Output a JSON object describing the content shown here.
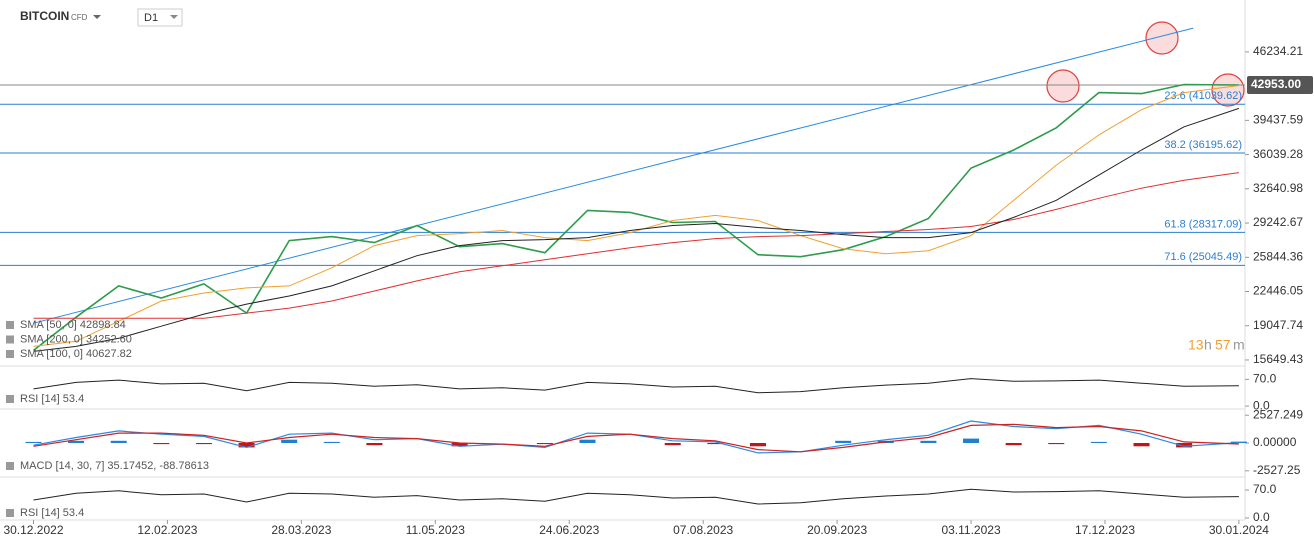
{
  "header": {
    "symbol": "BITCOIN",
    "instrument_type": "CFD",
    "timeframe": "D1",
    "countdown": [
      "13",
      "h",
      "57",
      "m"
    ]
  },
  "chart_data": [
    {
      "type": "line",
      "x": [
        "30.12.2022",
        "13.01.2023",
        "27.01.2023",
        "10.02.2023",
        "24.02.2023",
        "10.03.2023",
        "24.03.2023",
        "07.04.2023",
        "21.04.2023",
        "05.05.2023",
        "19.05.2023",
        "02.06.2023",
        "16.06.2023",
        "30.06.2023",
        "14.07.2023",
        "28.07.2023",
        "11.08.2023",
        "25.08.2023",
        "08.09.2023",
        "22.09.2023",
        "06.10.2023",
        "20.10.2023",
        "03.11.2023",
        "17.11.2023",
        "01.12.2023",
        "15.12.2023",
        "29.12.2023",
        "12.01.2024",
        "30.01.2024"
      ],
      "series": [
        {
          "color": "#2e9c4a",
          "values": [
            16600,
            19900,
            23000,
            21800,
            23200,
            20300,
            27500,
            27900,
            27300,
            29000,
            26900,
            27200,
            26300,
            30500,
            30300,
            29300,
            29400,
            26100,
            25900,
            26600,
            27900,
            29700,
            34700,
            36500,
            38700,
            42200,
            42100,
            43000,
            42953
          ]
        },
        {
          "name": "SMA [50, 0] 42898.84",
          "color": "#f0a030",
          "values": [
            17000,
            17500,
            19500,
            21500,
            22300,
            22800,
            23000,
            24800,
            27000,
            28000,
            28200,
            28500,
            27800,
            27500,
            28300,
            29500,
            30000,
            29500,
            28000,
            26700,
            26200,
            26500,
            28000,
            31500,
            35000,
            38000,
            40500,
            42200,
            42898.84
          ]
        },
        {
          "name": "SMA [200, 0] 34252.60",
          "color": "#e03030",
          "values": [
            19800,
            19800,
            19800,
            19800,
            19800,
            20300,
            20800,
            21500,
            22500,
            23500,
            24400,
            25000,
            25600,
            26200,
            26800,
            27300,
            27700,
            27900,
            28000,
            28200,
            28400,
            28600,
            28900,
            29600,
            30600,
            31700,
            32700,
            33500,
            34252.6
          ]
        },
        {
          "name": "SMA [100, 0] 40627.82",
          "color": "#222222",
          "values": [
            16500,
            17000,
            17800,
            19000,
            20200,
            21200,
            22000,
            23000,
            24500,
            26000,
            27000,
            27500,
            27600,
            27800,
            28500,
            29000,
            29200,
            28800,
            28500,
            28100,
            27800,
            27800,
            28300,
            29800,
            31500,
            34000,
            36500,
            38800,
            40627.82
          ]
        }
      ],
      "xlim": [
        "19.12.2022",
        "01.02.2024"
      ],
      "xticks": [
        "30.12.2022",
        "12.02.2023",
        "28.03.2023",
        "11.05.2023",
        "24.06.2023",
        "07.08.2023",
        "20.09.2023",
        "03.11.2023",
        "17.12.2023",
        "30.01.2024"
      ],
      "ylim": [
        15150,
        49900
      ],
      "yticks": [
        46234.21,
        39437.59,
        36039.28,
        32640.98,
        29242.67,
        25844.36,
        22446.05,
        19047.74,
        15649.43
      ],
      "last_price": {
        "value": 42953,
        "label": "42953.00"
      },
      "fib_levels": [
        {
          "value": 41039.62,
          "label": "23.6 (41039.62)"
        },
        {
          "value": 36195.62,
          "label": "38.2 (36195.62)"
        },
        {
          "value": 28317.09,
          "label": "61.8 (28317.09)"
        },
        {
          "value": 25045.49,
          "label": "71.6 (25045.49)"
        }
      ],
      "fib_color": "#2a7fd4",
      "trendline": {
        "x": [
          "30.12.2022",
          "15.01.2024"
        ],
        "values": [
          19300,
          48600
        ],
        "color": "#2a8ae0"
      }
    },
    {
      "type": "line",
      "title": "RSI [14] 53.4",
      "series": [
        {
          "color": "#222222",
          "values": [
            45,
            62,
            68,
            58,
            60,
            40,
            62,
            60,
            52,
            56,
            45,
            48,
            42,
            62,
            58,
            50,
            52,
            35,
            38,
            48,
            55,
            60,
            72,
            65,
            66,
            68,
            60,
            52,
            53.4
          ]
        }
      ],
      "ylim": [
        -5,
        105
      ],
      "yticks": [
        {
          "value": 70,
          "label": "70.0"
        },
        {
          "value": 0,
          "label": "0.0"
        }
      ]
    },
    {
      "type": "macd",
      "title": "MACD [14, 30, 7] 35.17452, -88.78613",
      "series": [
        {
          "type": "bar",
          "color": "#1f7fd0",
          "negative_color": "#c0151b",
          "values": [
            100,
            200,
            200,
            -100,
            -100,
            -400,
            300,
            100,
            -200,
            0,
            -300,
            0,
            -100,
            300,
            0,
            -200,
            -100,
            -300,
            0,
            200,
            200,
            200,
            400,
            -200,
            -100,
            100,
            -300,
            -400,
            123.96
          ]
        },
        {
          "type": "line",
          "color": "#2a8ae0",
          "values": [
            -200,
            500,
            1100,
            800,
            600,
            -400,
            800,
            900,
            300,
            400,
            -300,
            -100,
            -400,
            900,
            800,
            200,
            100,
            -900,
            -800,
            -200,
            300,
            700,
            2000,
            1500,
            1300,
            1600,
            800,
            -300,
            35.17452
          ]
        },
        {
          "type": "line",
          "color": "#d02020",
          "values": [
            -300,
            300,
            900,
            900,
            700,
            0,
            500,
            800,
            500,
            400,
            0,
            -100,
            -300,
            600,
            800,
            400,
            200,
            -600,
            -800,
            -400,
            100,
            500,
            1600,
            1700,
            1400,
            1500,
            1100,
            100,
            -88.78613
          ]
        }
      ],
      "ylim": [
        -3000,
        3000
      ],
      "yticks": [
        2527.249,
        {
          "value": 0,
          "label": "0.00000"
        },
        -2527.25
      ]
    }
  ]
}
